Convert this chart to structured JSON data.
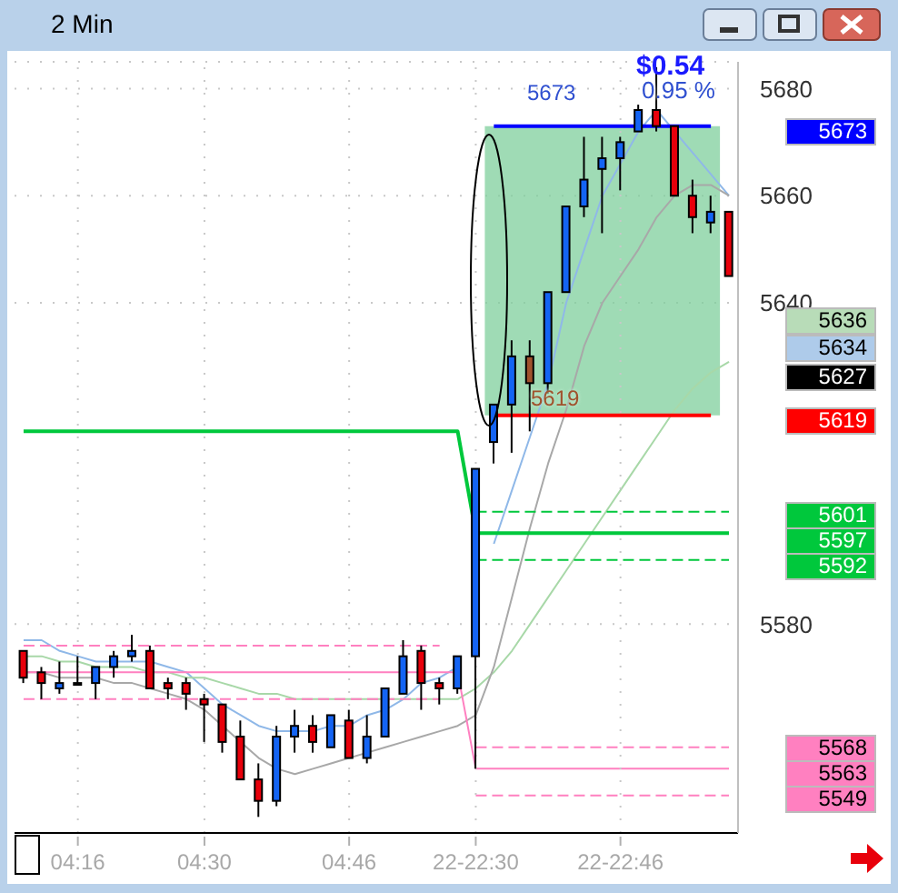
{
  "chart_data": {
    "type": "candlestick",
    "title": "2 Min",
    "categories": [
      null,
      null,
      null,
      "04:16",
      null,
      null,
      null,
      null,
      null,
      null,
      "04:30",
      null,
      null,
      null,
      null,
      null,
      null,
      null,
      "04:46",
      null,
      null,
      null,
      null,
      null,
      null,
      "22-22:30",
      null,
      null,
      null,
      null,
      null,
      null,
      null,
      "22-22:46",
      null,
      null,
      null,
      null,
      null,
      null
    ],
    "ohlc": [
      [
        5575,
        5575,
        5569,
        5570
      ],
      [
        5571,
        5572,
        5566,
        5569
      ],
      [
        5568,
        5573,
        5567,
        5569
      ],
      [
        5569,
        5574,
        5569,
        5569
      ],
      [
        5569,
        5572,
        5566,
        5572
      ],
      [
        5572,
        5575,
        5570,
        5574
      ],
      [
        5574,
        5578,
        5573,
        5575
      ],
      [
        5575,
        5576,
        5568,
        5568
      ],
      [
        5569,
        5570,
        5566,
        5568
      ],
      [
        5569,
        5570,
        5564,
        5567
      ],
      [
        5566,
        5567,
        5558,
        5565
      ],
      [
        5565,
        5565,
        5556,
        5558
      ],
      [
        5559,
        5562,
        5551,
        5551
      ],
      [
        5551,
        5554,
        5544,
        5547
      ],
      [
        5547,
        5561,
        5546,
        5559
      ],
      [
        5559,
        5564,
        5556,
        5561
      ],
      [
        5561,
        5563,
        5556,
        5558
      ],
      [
        5557,
        5563,
        5557,
        5563
      ],
      [
        5562,
        5564,
        5555,
        5555
      ],
      [
        5555,
        5563,
        5554,
        5559
      ],
      [
        5559,
        5568,
        5559,
        5568
      ],
      [
        5567,
        5577,
        5567,
        5574
      ],
      [
        5575,
        5576,
        5564,
        5569
      ],
      [
        5569,
        5570,
        5565,
        5568
      ],
      [
        5568,
        5574,
        5567,
        5574
      ],
      [
        5574,
        5609,
        5553,
        5609
      ],
      [
        5614,
        5621,
        5610,
        5621
      ],
      [
        5621,
        5633,
        5612,
        5630
      ],
      [
        5630,
        5633,
        5616,
        5625
      ],
      [
        5625,
        5642,
        5623,
        5642
      ],
      [
        5642,
        5658,
        5642,
        5658
      ],
      [
        5658,
        5671,
        5656,
        5663
      ],
      [
        5665,
        5671,
        5653,
        5667
      ],
      [
        5667,
        5671,
        5661,
        5670
      ],
      [
        5672,
        5677,
        5672,
        5676
      ],
      [
        5676,
        5684,
        5672,
        5673
      ],
      [
        5673,
        5673,
        5660,
        5660
      ],
      [
        5660,
        5663,
        5653,
        5656
      ],
      [
        5655,
        5660,
        5653,
        5657
      ],
      [
        5657,
        5657,
        5645,
        5645
      ]
    ],
    "colors": [
      "#e8000b",
      "#e8000b",
      "#1464f4",
      "#1464f4",
      "#1464f4",
      "#1464f4",
      "#1464f4",
      "#e8000b",
      "#e8000b",
      "#e8000b",
      "#e8000b",
      "#e8000b",
      "#e8000b",
      "#e8000b",
      "#1464f4",
      "#1464f4",
      "#e8000b",
      "#1464f4",
      "#e8000b",
      "#1464f4",
      "#1464f4",
      "#1464f4",
      "#e8000b",
      "#e8000b",
      "#1464f4",
      "#1464f4",
      "#1464f4",
      "#1464f4",
      "#a0522d",
      "#1464f4",
      "#1464f4",
      "#1464f4",
      "#1464f4",
      "#1464f4",
      "#1464f4",
      "#e8000b",
      "#e8000b",
      "#e8000b",
      "#1464f4",
      "#e8000b"
    ],
    "series": [
      {
        "type": "line",
        "color": "#8fb8e8",
        "line_style": "solid",
        "values": [
          5577,
          5577,
          5575,
          5574,
          5573,
          5573,
          5573,
          5573,
          5572,
          5571,
          5568,
          5565,
          5563,
          5561,
          5560,
          5560,
          5560,
          5561,
          5561,
          5563,
          5564,
          5566,
          5569,
          5570,
          5572,
          null,
          5595,
          5605,
          5615,
          5625,
          5640,
          5650,
          5660,
          5666,
          5672,
          5676,
          5672,
          5668,
          5664,
          5660
        ]
      },
      {
        "type": "line",
        "color": "#a8d8a8",
        "line_style": "solid",
        "values": [
          5574,
          5574,
          5573,
          5573,
          5572,
          5572,
          5572,
          5571,
          5571,
          5570,
          5570,
          5569,
          5568,
          5567,
          5567,
          5566,
          5566,
          5566,
          5566,
          5566,
          5566,
          5566,
          5566,
          5566,
          5566,
          5568,
          5571,
          5575,
          5580,
          5585,
          5590,
          5595,
          5600,
          5605,
          5610,
          5615,
          5620,
          5624,
          5627,
          5629
        ]
      },
      {
        "type": "line",
        "color": "#a8a8a8",
        "line_style": "solid",
        "values": [
          5571,
          5571,
          5570,
          5570,
          5570,
          5569,
          5569,
          5568,
          5567,
          5566,
          5564,
          5561,
          5558,
          5555,
          5553,
          5552,
          5553,
          5554,
          5555,
          5556,
          5557,
          5558,
          5559,
          5560,
          5561,
          5563,
          5572,
          5585,
          5598,
          5610,
          5620,
          5632,
          5640,
          5645,
          5650,
          5656,
          5660,
          5662,
          5662,
          5660
        ]
      },
      {
        "type": "line",
        "color": "#00c83c",
        "line_style": "solid",
        "values": [
          5616,
          5616,
          5616,
          5616,
          5616,
          5616,
          5616,
          5616,
          5616,
          5616,
          5616,
          5616,
          5616,
          5616,
          5616,
          5616,
          5616,
          5616,
          5616,
          5616,
          5616,
          5616,
          5616,
          5616,
          5616,
          5597,
          5597,
          5597,
          5597,
          5597,
          5597,
          5597,
          5597,
          5597,
          5597,
          5597,
          5597,
          5597,
          5597,
          5597
        ]
      },
      {
        "type": "line",
        "color": "#00c83c",
        "line_style": "dashed",
        "values": [
          null,
          null,
          null,
          null,
          null,
          null,
          null,
          null,
          null,
          null,
          null,
          null,
          null,
          null,
          null,
          null,
          null,
          null,
          null,
          null,
          null,
          null,
          null,
          null,
          null,
          5601,
          5601,
          5601,
          5601,
          5601,
          5601,
          5601,
          5601,
          5601,
          5601,
          5601,
          5601,
          5601,
          5601,
          5601
        ]
      },
      {
        "type": "line",
        "color": "#00c83c",
        "line_style": "dashed",
        "values": [
          null,
          null,
          null,
          null,
          null,
          null,
          null,
          null,
          null,
          null,
          null,
          null,
          null,
          null,
          null,
          null,
          null,
          null,
          null,
          null,
          null,
          null,
          null,
          null,
          null,
          5592,
          5592,
          5592,
          5592,
          5592,
          5592,
          5592,
          5592,
          5592,
          5592,
          5592,
          5592,
          5592,
          5592,
          5592
        ]
      },
      {
        "type": "line",
        "color": "#ff80c0",
        "line_style": "solid",
        "values": [
          5571,
          5571,
          5571,
          5571,
          5571,
          5571,
          5571,
          5571,
          5571,
          5571,
          5571,
          5571,
          5571,
          5571,
          5571,
          5571,
          5571,
          5571,
          5571,
          5571,
          5571,
          5571,
          5571,
          5571,
          5571,
          5553,
          5553,
          5553,
          5553,
          5553,
          5553,
          5553,
          5553,
          5553,
          5553,
          5553,
          5553,
          5553,
          5553,
          5553
        ]
      },
      {
        "type": "line",
        "color": "#ff80c0",
        "line_style": "dashed",
        "values": [
          5576,
          5576,
          5576,
          5576,
          5576,
          5576,
          5576,
          5576,
          5576,
          5576,
          5576,
          5576,
          5576,
          5576,
          5576,
          5576,
          5576,
          5576,
          5576,
          5576,
          5576,
          5576,
          5576,
          5576,
          null,
          5557,
          5557,
          5557,
          5557,
          5557,
          5557,
          5557,
          5557,
          5557,
          5557,
          5557,
          5557,
          5557,
          5557,
          5557
        ]
      },
      {
        "type": "line",
        "color": "#ff80c0",
        "line_style": "dashed",
        "values": [
          5566,
          5566,
          5566,
          5566,
          5566,
          5566,
          5566,
          5566,
          5566,
          5566,
          5566,
          5566,
          5566,
          5566,
          5566,
          5566,
          5566,
          5566,
          5566,
          5566,
          5566,
          5566,
          5566,
          5566,
          null,
          5548,
          5548,
          5548,
          5548,
          5548,
          5548,
          5548,
          5548,
          5548,
          5548,
          5548,
          5548,
          5548,
          5548,
          5548
        ]
      },
      {
        "type": "line",
        "color": "#0000ff",
        "line_style": "solid",
        "values": [
          null,
          null,
          null,
          null,
          null,
          null,
          null,
          null,
          null,
          null,
          null,
          null,
          null,
          null,
          null,
          null,
          null,
          null,
          null,
          null,
          null,
          null,
          null,
          null,
          null,
          null,
          5673,
          5673,
          5673,
          5673,
          5673,
          5673,
          5673,
          5673,
          5673,
          5673,
          5673,
          5673,
          5673,
          null
        ]
      },
      {
        "type": "line",
        "color": "#ff0000",
        "line_style": "solid",
        "values": [
          null,
          null,
          null,
          null,
          null,
          null,
          null,
          null,
          null,
          null,
          null,
          null,
          null,
          null,
          null,
          null,
          null,
          null,
          null,
          null,
          null,
          null,
          null,
          null,
          null,
          null,
          5619,
          5619,
          5619,
          5619,
          5619,
          5619,
          5619,
          5619,
          5619,
          5619,
          5619,
          5619,
          5619,
          null
        ]
      }
    ],
    "bands": [
      {
        "axis": "y",
        "from": 5619,
        "to": 5673,
        "color": "#7fcf9c"
      }
    ],
    "annotations": [
      "$0.54",
      "0.95 %",
      "5673",
      "5619",
      "5673",
      "5636",
      "5634",
      "5627",
      "5619",
      "5601",
      "5597",
      "5592",
      "5568",
      "5563",
      "5549"
    ],
    "ylim": [
      5541,
      5685
    ],
    "yticks": [
      5580,
      5640,
      5660,
      5680
    ],
    "grid": true
  }
}
